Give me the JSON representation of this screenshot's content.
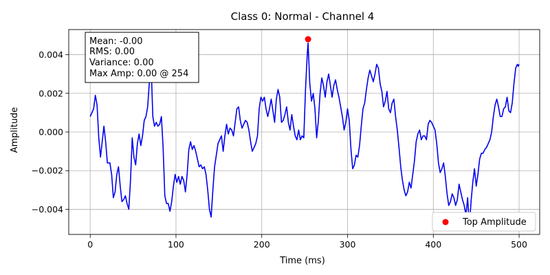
{
  "chart_data": {
    "type": "line",
    "title": "Class 0: Normal - Channel 4",
    "xlabel": "Time (ms)",
    "ylabel": "Amplitude",
    "xlim": [
      -25,
      524
    ],
    "ylim": [
      -0.0053,
      0.0053
    ],
    "grid": true,
    "xticks": [
      0,
      100,
      200,
      300,
      400,
      500
    ],
    "xtick_labels": [
      "0",
      "100",
      "200",
      "300",
      "400",
      "500"
    ],
    "yticks": [
      -0.004,
      -0.002,
      0.0,
      0.002,
      0.004
    ],
    "ytick_labels": [
      "−0.004",
      "−0.002",
      "0.000",
      "0.002",
      "0.004"
    ],
    "series": [
      {
        "color": "#0000ee",
        "points": [
          [
            0,
            0.0008
          ],
          [
            4,
            0.0012
          ],
          [
            6,
            0.0019
          ],
          [
            8,
            0.0014
          ],
          [
            10,
            -0.0003
          ],
          [
            12,
            -0.0013
          ],
          [
            14,
            -0.0005
          ],
          [
            16,
            0.0003
          ],
          [
            18,
            -0.0005
          ],
          [
            20,
            -0.0016
          ],
          [
            23,
            -0.0016
          ],
          [
            25,
            -0.0022
          ],
          [
            27,
            -0.0034
          ],
          [
            29,
            -0.0031
          ],
          [
            31,
            -0.0022
          ],
          [
            33,
            -0.0018
          ],
          [
            35,
            -0.0028
          ],
          [
            37,
            -0.0036
          ],
          [
            39,
            -0.0035
          ],
          [
            41,
            -0.0033
          ],
          [
            43,
            -0.0037
          ],
          [
            45,
            -0.004
          ],
          [
            47,
            -0.0025
          ],
          [
            49,
            -0.0003
          ],
          [
            51,
            -0.0013
          ],
          [
            53,
            -0.0017
          ],
          [
            55,
            -0.0006
          ],
          [
            57,
            -0.0001
          ],
          [
            59,
            -0.0007
          ],
          [
            61,
            -0.0002
          ],
          [
            63,
            0.0006
          ],
          [
            65,
            0.0008
          ],
          [
            67,
            0.0013
          ],
          [
            69,
            0.0026
          ],
          [
            71,
            0.0035
          ],
          [
            73,
            0.0008
          ],
          [
            75,
            0.0003
          ],
          [
            77,
            0.0005
          ],
          [
            79,
            0.0003
          ],
          [
            81,
            0.0004
          ],
          [
            83,
            0.0008
          ],
          [
            85,
            -0.0008
          ],
          [
            87,
            -0.0033
          ],
          [
            89,
            -0.0037
          ],
          [
            91,
            -0.0037
          ],
          [
            93,
            -0.0041
          ],
          [
            95,
            -0.0036
          ],
          [
            97,
            -0.0028
          ],
          [
            99,
            -0.0022
          ],
          [
            101,
            -0.0026
          ],
          [
            103,
            -0.0023
          ],
          [
            105,
            -0.0027
          ],
          [
            107,
            -0.0023
          ],
          [
            109,
            -0.0025
          ],
          [
            111,
            -0.0031
          ],
          [
            113,
            -0.0022
          ],
          [
            115,
            -0.0009
          ],
          [
            117,
            -0.0005
          ],
          [
            119,
            -0.0009
          ],
          [
            121,
            -0.0007
          ],
          [
            123,
            -0.001
          ],
          [
            125,
            -0.0014
          ],
          [
            127,
            -0.0018
          ],
          [
            129,
            -0.0017
          ],
          [
            131,
            -0.0019
          ],
          [
            133,
            -0.0018
          ],
          [
            135,
            -0.0022
          ],
          [
            137,
            -0.003
          ],
          [
            139,
            -0.004
          ],
          [
            141,
            -0.0044
          ],
          [
            143,
            -0.003
          ],
          [
            145,
            -0.0018
          ],
          [
            147,
            -0.0012
          ],
          [
            149,
            -0.0006
          ],
          [
            151,
            -0.0004
          ],
          [
            153,
            -0.0002
          ],
          [
            155,
            -0.001
          ],
          [
            157,
            -0.0002
          ],
          [
            159,
            0.0004
          ],
          [
            161,
            -0.0001
          ],
          [
            163,
            0.0002
          ],
          [
            165,
            0.0001
          ],
          [
            167,
            -0.0002
          ],
          [
            169,
            0.0005
          ],
          [
            171,
            0.0012
          ],
          [
            173,
            0.0013
          ],
          [
            175,
            0.0006
          ],
          [
            177,
            0.0002
          ],
          [
            179,
            0.0004
          ],
          [
            181,
            0.0006
          ],
          [
            183,
            0.0005
          ],
          [
            185,
            0.0001
          ],
          [
            187,
            -0.0005
          ],
          [
            189,
            -0.001
          ],
          [
            191,
            -0.0008
          ],
          [
            193,
            -0.0006
          ],
          [
            195,
            -0.0002
          ],
          [
            197,
            0.0012
          ],
          [
            199,
            0.0018
          ],
          [
            201,
            0.0016
          ],
          [
            203,
            0.0018
          ],
          [
            205,
            0.0012
          ],
          [
            207,
            0.0008
          ],
          [
            209,
            0.0012
          ],
          [
            211,
            0.0017
          ],
          [
            213,
            0.0011
          ],
          [
            215,
            0.0005
          ],
          [
            217,
            0.0017
          ],
          [
            219,
            0.0022
          ],
          [
            221,
            0.0018
          ],
          [
            223,
            0.0005
          ],
          [
            225,
            0.0006
          ],
          [
            227,
            0.0009
          ],
          [
            229,
            0.0013
          ],
          [
            231,
            0.0005
          ],
          [
            233,
            0.0001
          ],
          [
            235,
            0.0009
          ],
          [
            237,
            0.0003
          ],
          [
            239,
            -0.0002
          ],
          [
            241,
            -0.0004
          ],
          [
            243,
            0.0001
          ],
          [
            245,
            -0.0004
          ],
          [
            247,
            -0.0002
          ],
          [
            249,
            -0.0003
          ],
          [
            251,
            0.0022
          ],
          [
            253,
            0.004
          ],
          [
            254,
            0.0046
          ],
          [
            256,
            0.0025
          ],
          [
            258,
            0.0016
          ],
          [
            260,
            0.002
          ],
          [
            262,
            0.0012
          ],
          [
            264,
            -0.0003
          ],
          [
            266,
            0.0006
          ],
          [
            268,
            0.002
          ],
          [
            270,
            0.0028
          ],
          [
            272,
            0.0024
          ],
          [
            274,
            0.0018
          ],
          [
            276,
            0.0026
          ],
          [
            278,
            0.003
          ],
          [
            280,
            0.0024
          ],
          [
            282,
            0.0018
          ],
          [
            284,
            0.0024
          ],
          [
            286,
            0.0027
          ],
          [
            288,
            0.0022
          ],
          [
            290,
            0.0018
          ],
          [
            292,
            0.0013
          ],
          [
            294,
            0.0008
          ],
          [
            296,
            0.0001
          ],
          [
            298,
            0.0005
          ],
          [
            300,
            0.0012
          ],
          [
            302,
            0.0006
          ],
          [
            304,
            -0.0009
          ],
          [
            306,
            -0.0019
          ],
          [
            308,
            -0.0017
          ],
          [
            310,
            -0.0012
          ],
          [
            312,
            -0.0013
          ],
          [
            314,
            -0.0007
          ],
          [
            316,
            0.0003
          ],
          [
            318,
            0.0012
          ],
          [
            320,
            0.0015
          ],
          [
            322,
            0.0022
          ],
          [
            324,
            0.0028
          ],
          [
            326,
            0.0032
          ],
          [
            328,
            0.0029
          ],
          [
            330,
            0.0026
          ],
          [
            332,
            0.003
          ],
          [
            334,
            0.0035
          ],
          [
            336,
            0.0033
          ],
          [
            338,
            0.0025
          ],
          [
            340,
            0.0021
          ],
          [
            342,
            0.0013
          ],
          [
            344,
            0.0016
          ],
          [
            346,
            0.0021
          ],
          [
            348,
            0.0012
          ],
          [
            350,
            0.001
          ],
          [
            352,
            0.0015
          ],
          [
            354,
            0.0017
          ],
          [
            356,
            0.0008
          ],
          [
            358,
            0.0001
          ],
          [
            360,
            -0.0008
          ],
          [
            362,
            -0.0018
          ],
          [
            364,
            -0.0025
          ],
          [
            366,
            -0.003
          ],
          [
            368,
            -0.0033
          ],
          [
            370,
            -0.0031
          ],
          [
            372,
            -0.0026
          ],
          [
            374,
            -0.0029
          ],
          [
            376,
            -0.0022
          ],
          [
            378,
            -0.0015
          ],
          [
            380,
            -0.0005
          ],
          [
            382,
            -0.0001
          ],
          [
            384,
            0.0001
          ],
          [
            386,
            -0.0004
          ],
          [
            388,
            -0.0002
          ],
          [
            390,
            -0.0002
          ],
          [
            392,
            -0.0004
          ],
          [
            394,
            0.0004
          ],
          [
            396,
            0.0006
          ],
          [
            398,
            0.0005
          ],
          [
            400,
            0.0003
          ],
          [
            402,
            0.0001
          ],
          [
            404,
            -0.0006
          ],
          [
            406,
            -0.0016
          ],
          [
            408,
            -0.0021
          ],
          [
            410,
            -0.0019
          ],
          [
            412,
            -0.0016
          ],
          [
            414,
            -0.0023
          ],
          [
            416,
            -0.0032
          ],
          [
            418,
            -0.0038
          ],
          [
            420,
            -0.0036
          ],
          [
            422,
            -0.0032
          ],
          [
            424,
            -0.0034
          ],
          [
            426,
            -0.0038
          ],
          [
            428,
            -0.0035
          ],
          [
            430,
            -0.0027
          ],
          [
            432,
            -0.0031
          ],
          [
            434,
            -0.0035
          ],
          [
            436,
            -0.0038
          ],
          [
            438,
            -0.0043
          ],
          [
            440,
            -0.0034
          ],
          [
            442,
            -0.0049
          ],
          [
            444,
            -0.0036
          ],
          [
            446,
            -0.0026
          ],
          [
            448,
            -0.0019
          ],
          [
            450,
            -0.0028
          ],
          [
            452,
            -0.0022
          ],
          [
            454,
            -0.0014
          ],
          [
            456,
            -0.0011
          ],
          [
            458,
            -0.0011
          ],
          [
            460,
            -0.0009
          ],
          [
            462,
            -0.0008
          ],
          [
            464,
            -0.0006
          ],
          [
            466,
            -0.0004
          ],
          [
            468,
            0.0
          ],
          [
            470,
            0.0008
          ],
          [
            472,
            0.0014
          ],
          [
            474,
            0.0017
          ],
          [
            476,
            0.0013
          ],
          [
            478,
            0.0008
          ],
          [
            480,
            0.0008
          ],
          [
            482,
            0.0012
          ],
          [
            484,
            0.0013
          ],
          [
            486,
            0.0018
          ],
          [
            488,
            0.0011
          ],
          [
            490,
            0.001
          ],
          [
            492,
            0.0015
          ],
          [
            494,
            0.0025
          ],
          [
            496,
            0.0033
          ],
          [
            498,
            0.0035
          ],
          [
            499,
            0.0034
          ],
          [
            500,
            0.0035
          ]
        ]
      }
    ],
    "highlight": {
      "x": 254,
      "y": 0.0048,
      "color": "#ff0000",
      "label": "Top Amplitude"
    },
    "legend": {
      "placement": "bottom-right",
      "entries": [
        "Top Amplitude"
      ]
    },
    "stats_box": {
      "placement": "top-left",
      "lines": [
        "Mean: -0.00",
        "RMS: 0.00",
        "Variance: 0.00",
        "Max Amp: 0.00 @ 254"
      ]
    }
  }
}
